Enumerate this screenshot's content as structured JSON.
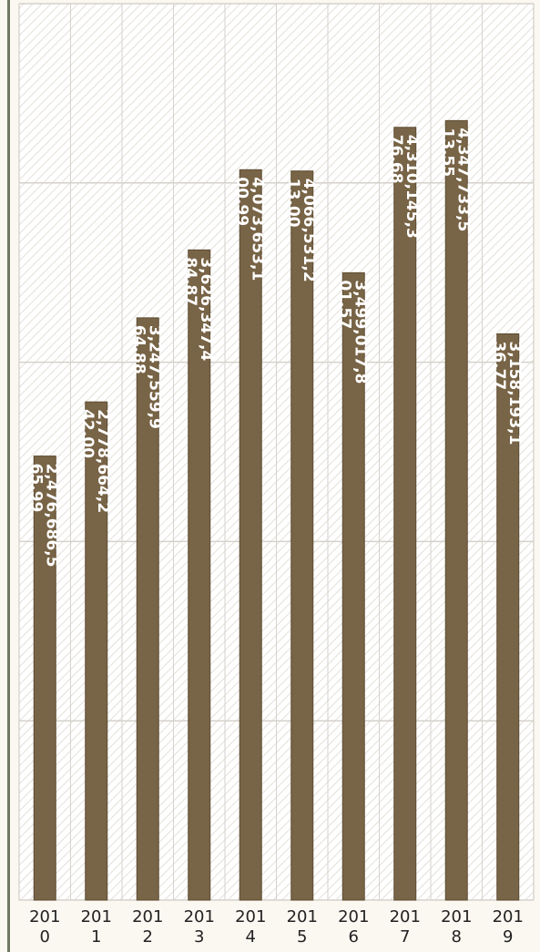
{
  "chart_data": {
    "type": "bar",
    "title": "",
    "xlabel": "",
    "ylabel": "",
    "categories": [
      "2010",
      "2011",
      "2012",
      "2013",
      "2014",
      "2015",
      "2016",
      "2017",
      "2018",
      "2019"
    ],
    "tick_lines": [
      [
        "201",
        "0"
      ],
      [
        "201",
        "1"
      ],
      [
        "201",
        "2"
      ],
      [
        "201",
        "3"
      ],
      [
        "201",
        "4"
      ],
      [
        "201",
        "5"
      ],
      [
        "201",
        "6"
      ],
      [
        "201",
        "7"
      ],
      [
        "201",
        "8"
      ],
      [
        "201",
        "9"
      ]
    ],
    "values": [
      2.4766865,
      2.7786642,
      3.2475599,
      3.6263474,
      4.0736531,
      4.0665312,
      3.4990178,
      4.3101453,
      4.3477335,
      3.1581931
    ],
    "labels": [
      [
        "2,476,686,5",
        "65.99"
      ],
      [
        "2,778,664,2",
        "42.00"
      ],
      [
        "3,247,559,9",
        "64.88"
      ],
      [
        "3,626,347,4",
        "84.87"
      ],
      [
        "4,073,653,1",
        "00.99"
      ],
      [
        "4,066,531,2",
        "13.00"
      ],
      [
        "3,499,017,8",
        "01.57"
      ],
      [
        "4,310,145,3",
        "76.68"
      ],
      [
        "4,347,733,5",
        "13.55"
      ],
      [
        "3,158,193,1",
        "36.77"
      ]
    ],
    "ylim": [
      0,
      5
    ],
    "grid": true,
    "legend": "none",
    "colors": {
      "bar": "#786446",
      "bar_stroke": "#5e4d33",
      "grid": "#d6d2cc",
      "hatch": "#e4e0da",
      "frame": "#c9c5bf",
      "left_border": "#6f7a62",
      "page": "#fbf7f1"
    }
  }
}
